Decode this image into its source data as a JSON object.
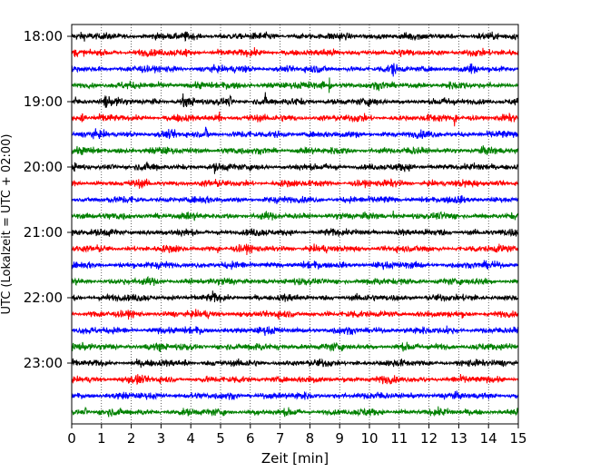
{
  "chart_data": {
    "type": "line",
    "title": "",
    "xlabel": "Zeit  [min]",
    "ylabel": "UTC (Lokalzeit = UTC + 02:00)",
    "xlim": [
      0,
      15
    ],
    "x_ticks": [
      0,
      1,
      2,
      3,
      4,
      5,
      6,
      7,
      8,
      9,
      10,
      11,
      12,
      13,
      14,
      15
    ],
    "y_tick_labels": [
      "18:00",
      "19:00",
      "20:00",
      "21:00",
      "22:00",
      "23:00"
    ],
    "x_grid": true,
    "y_grid": false,
    "color_cycle": [
      "#000000",
      "#ff0000",
      "#0000ff",
      "#008000"
    ],
    "trace_start_times": [
      "18:00",
      "18:15",
      "18:30",
      "18:45",
      "19:00",
      "19:15",
      "19:30",
      "19:45",
      "20:00",
      "20:15",
      "20:30",
      "20:45",
      "21:00",
      "21:15",
      "21:30",
      "21:45",
      "22:00",
      "22:15",
      "22:30",
      "22:45",
      "23:00",
      "23:15",
      "23:30",
      "23:45"
    ],
    "trace_amplitude": 0.35,
    "events": [
      {
        "trace": 0,
        "x": 1.1,
        "amp": 0.4
      },
      {
        "trace": 0,
        "x": 3.8,
        "amp": 0.35
      },
      {
        "trace": 1,
        "x": 3.8,
        "amp": 0.6
      },
      {
        "trace": 2,
        "x": 10.75,
        "amp": 1.1
      },
      {
        "trace": 2,
        "x": 13.4,
        "amp": 1.0
      },
      {
        "trace": 3,
        "x": 8.4,
        "amp": 0.9
      },
      {
        "trace": 3,
        "x": 8.65,
        "amp": 1.2
      },
      {
        "trace": 4,
        "x": 0.1,
        "amp": 0.7
      },
      {
        "trace": 4,
        "x": 1.1,
        "amp": 1.6
      },
      {
        "trace": 4,
        "x": 3.75,
        "amp": 1.1
      },
      {
        "trace": 4,
        "x": 5.3,
        "amp": 0.7
      },
      {
        "trace": 4,
        "x": 6.5,
        "amp": 0.6
      },
      {
        "trace": 5,
        "x": 0.35,
        "amp": 1.2
      },
      {
        "trace": 5,
        "x": 4.95,
        "amp": 1.1
      },
      {
        "trace": 5,
        "x": 12.85,
        "amp": 1.2
      },
      {
        "trace": 6,
        "x": 4.5,
        "amp": 1.0
      },
      {
        "trace": 8,
        "x": 4.8,
        "amp": 0.4
      },
      {
        "trace": 10,
        "x": 1.2,
        "amp": 0.6
      },
      {
        "trace": 11,
        "x": 10.8,
        "amp": 0.5
      },
      {
        "trace": 13,
        "x": 4.9,
        "amp": 0.5
      },
      {
        "trace": 13,
        "x": 13.5,
        "amp": 0.5
      },
      {
        "trace": 16,
        "x": 4.7,
        "amp": 0.6
      },
      {
        "trace": 17,
        "x": 8.6,
        "amp": 0.6
      },
      {
        "trace": 18,
        "x": 12.6,
        "amp": 0.5
      },
      {
        "trace": 19,
        "x": 2.9,
        "amp": 0.8
      },
      {
        "trace": 19,
        "x": 6.9,
        "amp": 0.5
      },
      {
        "trace": 19,
        "x": 14.7,
        "amp": 0.5
      },
      {
        "trace": 20,
        "x": 3.8,
        "amp": 0.6
      },
      {
        "trace": 21,
        "x": 2.2,
        "amp": 0.7
      },
      {
        "trace": 23,
        "x": 0.45,
        "amp": 0.5
      }
    ]
  }
}
